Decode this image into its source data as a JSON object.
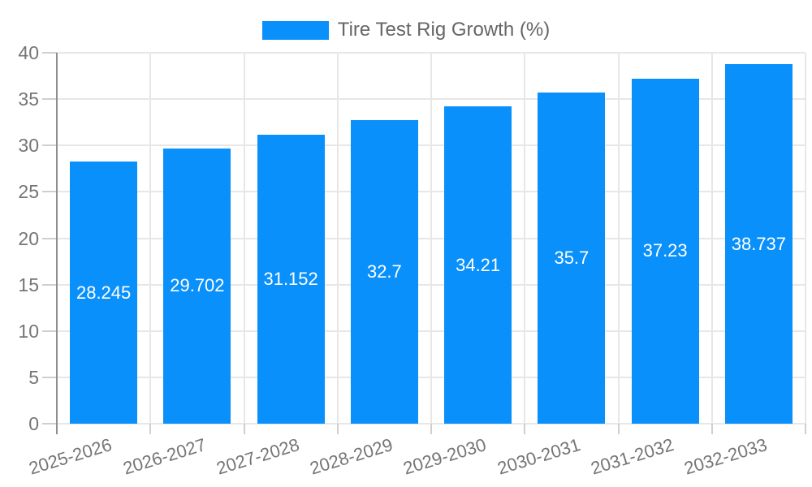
{
  "legend": {
    "label": "Tire Test Rig Growth (%)"
  },
  "chart_data": {
    "type": "bar",
    "title": "",
    "categories": [
      "2025-2026",
      "2026-2027",
      "2027-2028",
      "2028-2029",
      "2029-2030",
      "2030-2031",
      "2031-2032",
      "2032-2033"
    ],
    "series": [
      {
        "name": "Tire Test Rig Growth (%)",
        "values": [
          28.245,
          29.702,
          31.152,
          32.7,
          34.21,
          35.7,
          37.23,
          38.737
        ]
      }
    ],
    "value_labels": [
      "28.245",
      "29.702",
      "31.152",
      "32.7",
      "34.21",
      "35.7",
      "37.23",
      "38.737"
    ],
    "xlabel": "",
    "ylabel": "",
    "ylim": [
      0,
      40
    ],
    "yticks": [
      0,
      5,
      10,
      15,
      20,
      25,
      30,
      35,
      40
    ],
    "grid": true,
    "legend_position": "top",
    "x_label_rotation_deg": -17
  },
  "colors": {
    "bar": "#0a90fa",
    "grid": "#e7e7e7",
    "axis_line": "#8f8f8f",
    "tick_mark": "#cfcfcf",
    "tick_text": "#757575",
    "legend_text": "#666666",
    "value_text": "#ffffff",
    "background": "#ffffff"
  }
}
